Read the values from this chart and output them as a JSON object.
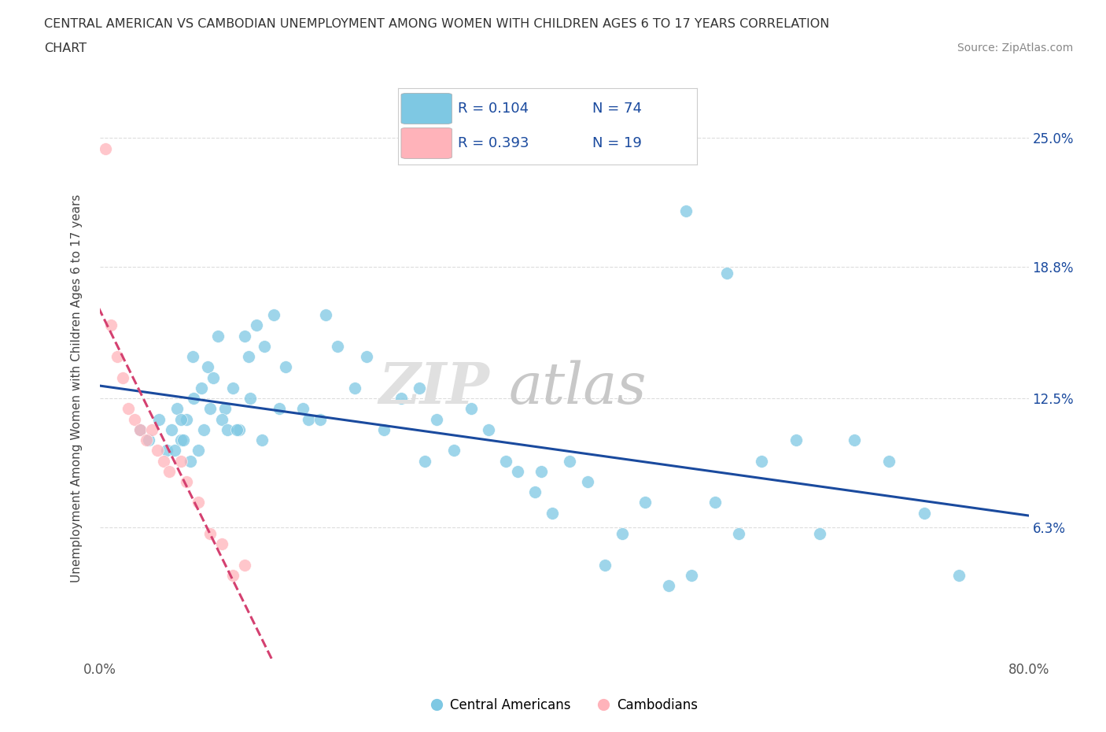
{
  "title_line1": "CENTRAL AMERICAN VS CAMBODIAN UNEMPLOYMENT AMONG WOMEN WITH CHILDREN AGES 6 TO 17 YEARS CORRELATION",
  "title_line2": "CHART",
  "source": "Source: ZipAtlas.com",
  "ylabel": "Unemployment Among Women with Children Ages 6 to 17 years",
  "xlim": [
    0,
    80
  ],
  "ylim": [
    0,
    26
  ],
  "ytick_vals": [
    6.3,
    12.5,
    18.8,
    25.0
  ],
  "ytick_labels": [
    "6.3%",
    "12.5%",
    "18.8%",
    "25.0%"
  ],
  "xtick_vals": [
    0,
    80
  ],
  "xtick_labels": [
    "0.0%",
    "80.0%"
  ],
  "blue_color": "#7ec8e3",
  "pink_color": "#ffb3ba",
  "blue_line_color": "#1a4a9e",
  "pink_line_color": "#d44070",
  "grid_color": "#dddddd",
  "legend_r1": "R = 0.104",
  "legend_n1": "N = 74",
  "legend_r2": "R = 0.393",
  "legend_n2": "N = 19",
  "blue_scatter_x": [
    3.5,
    4.2,
    5.1,
    5.8,
    6.2,
    6.7,
    7.0,
    7.5,
    7.8,
    8.1,
    8.5,
    9.0,
    9.3,
    9.8,
    10.2,
    10.8,
    11.5,
    12.0,
    12.8,
    13.5,
    14.2,
    15.0,
    16.0,
    17.5,
    18.0,
    19.5,
    20.5,
    22.0,
    23.0,
    24.5,
    26.0,
    27.5,
    29.0,
    30.5,
    32.0,
    33.5,
    35.0,
    36.0,
    37.5,
    39.0,
    40.5,
    42.0,
    43.5,
    45.0,
    47.0,
    49.0,
    51.0,
    53.0,
    55.0,
    57.0,
    60.0,
    62.0,
    65.0,
    68.0,
    71.0,
    74.0,
    50.5,
    54.0,
    7.0,
    8.0,
    8.8,
    9.5,
    10.5,
    11.0,
    12.5,
    13.0,
    14.0,
    15.5,
    6.5,
    7.2,
    11.8,
    19.0,
    28.0,
    38.0
  ],
  "blue_scatter_y": [
    11.0,
    10.5,
    11.5,
    10.0,
    11.0,
    12.0,
    10.5,
    11.5,
    9.5,
    12.5,
    10.0,
    11.0,
    14.0,
    13.5,
    15.5,
    12.0,
    13.0,
    11.0,
    14.5,
    16.0,
    15.0,
    16.5,
    14.0,
    12.0,
    11.5,
    16.5,
    15.0,
    13.0,
    14.5,
    11.0,
    12.5,
    13.0,
    11.5,
    10.0,
    12.0,
    11.0,
    9.5,
    9.0,
    8.0,
    7.0,
    9.5,
    8.5,
    4.5,
    6.0,
    7.5,
    3.5,
    4.0,
    7.5,
    6.0,
    9.5,
    10.5,
    6.0,
    10.5,
    9.5,
    7.0,
    4.0,
    21.5,
    18.5,
    11.5,
    14.5,
    13.0,
    12.0,
    11.5,
    11.0,
    15.5,
    12.5,
    10.5,
    12.0,
    10.0,
    10.5,
    11.0,
    11.5,
    9.5,
    9.0
  ],
  "pink_scatter_x": [
    0.5,
    1.0,
    1.5,
    2.0,
    2.5,
    3.0,
    3.5,
    4.5,
    5.0,
    5.5,
    6.0,
    7.0,
    7.5,
    8.5,
    9.5,
    10.5,
    11.5,
    12.5,
    4.0
  ],
  "pink_scatter_y": [
    24.5,
    16.0,
    14.5,
    13.5,
    12.0,
    11.5,
    11.0,
    11.0,
    10.0,
    9.5,
    9.0,
    9.5,
    8.5,
    7.5,
    6.0,
    5.5,
    4.0,
    4.5,
    10.5
  ]
}
